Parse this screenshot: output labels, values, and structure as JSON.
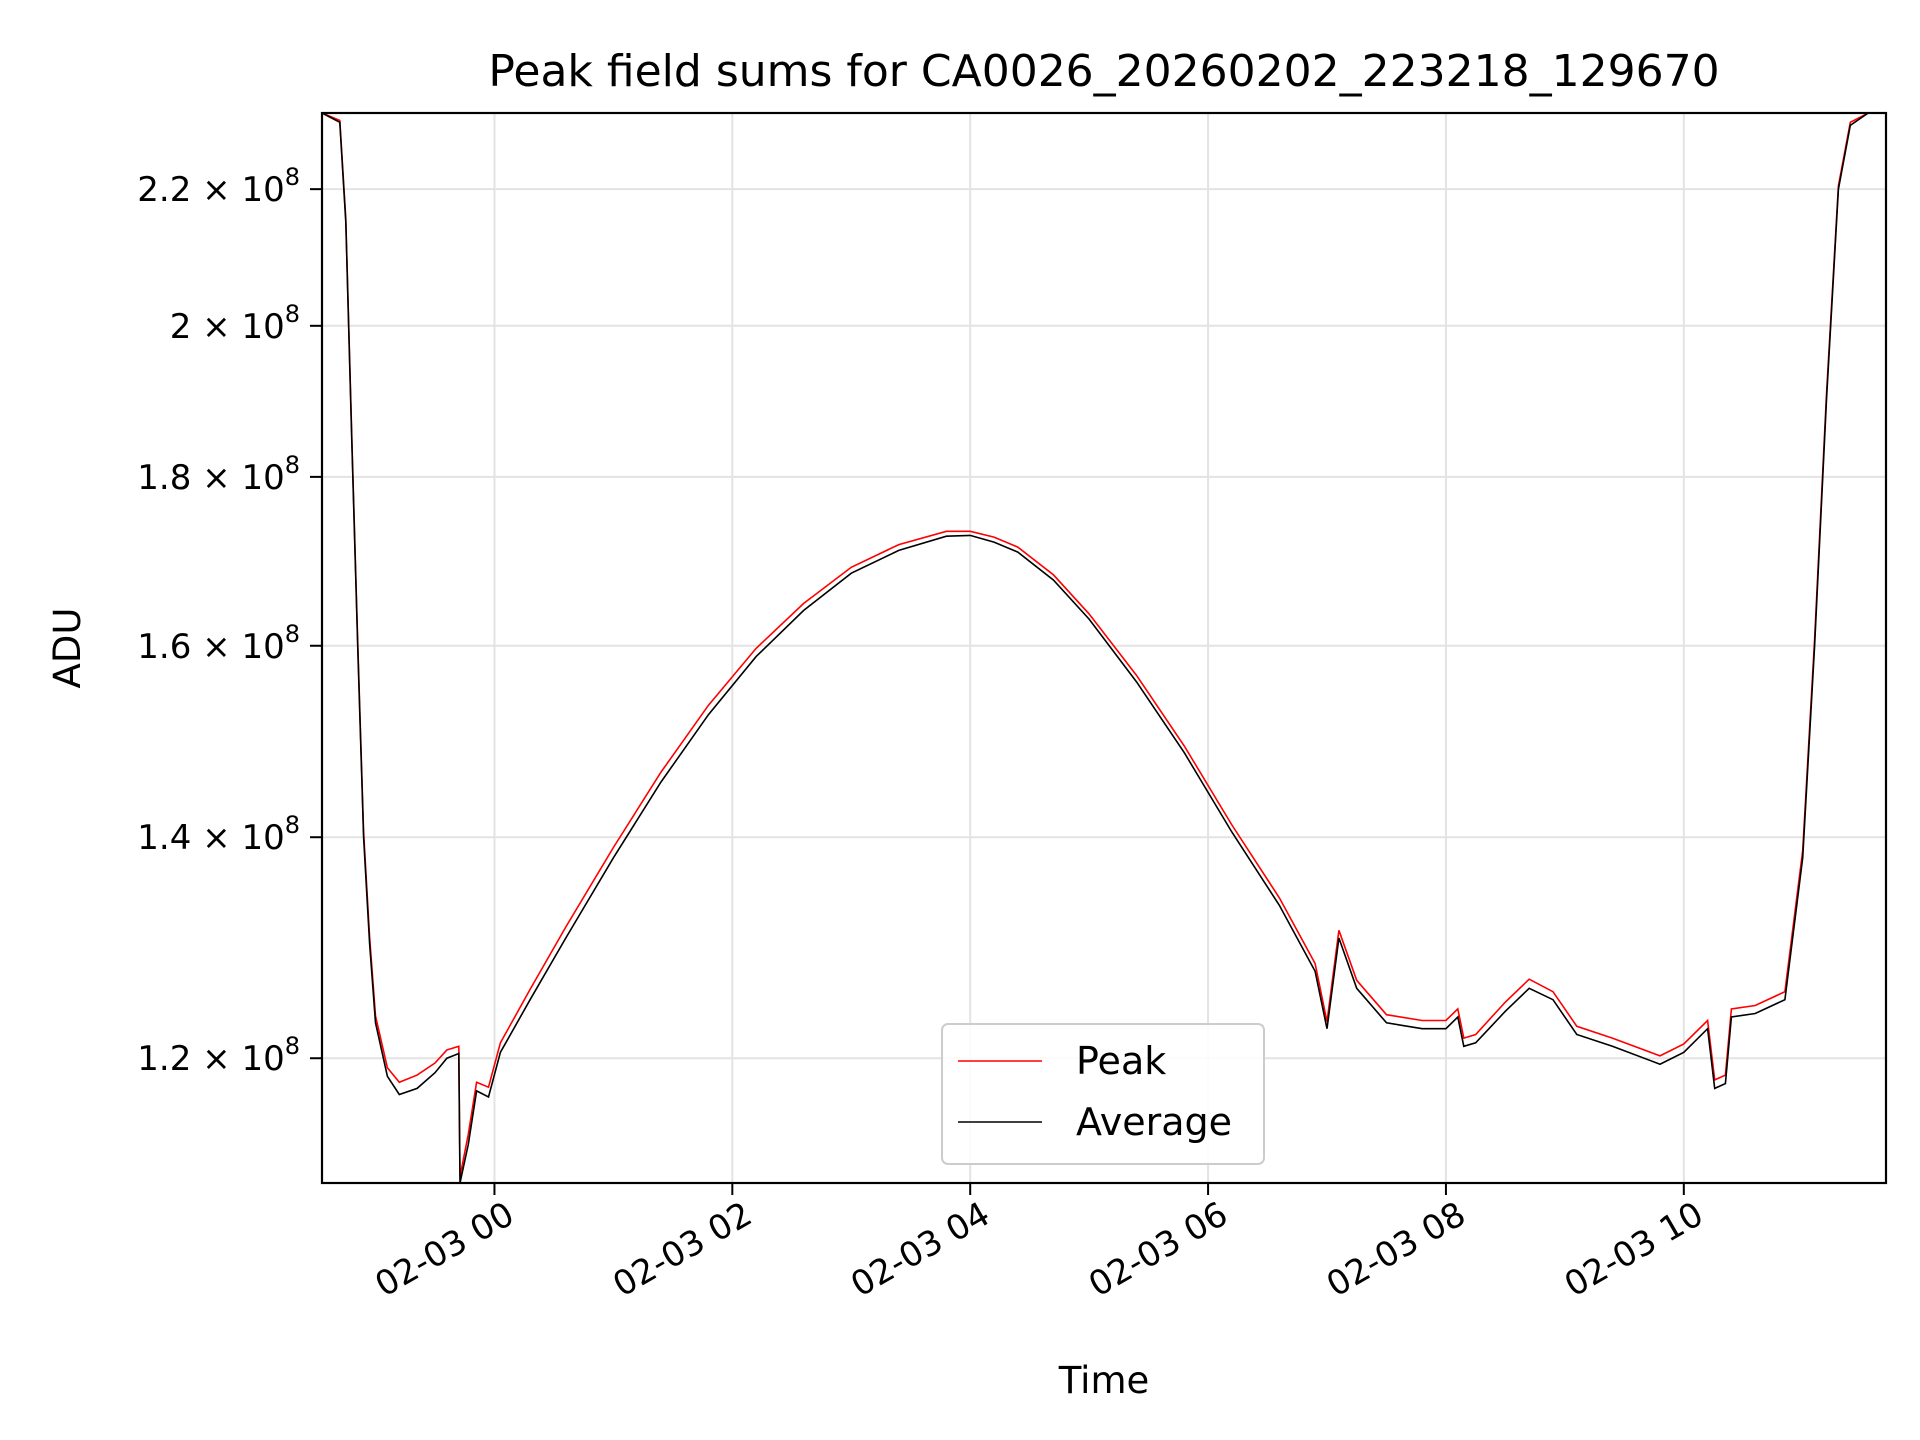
{
  "chart_data": {
    "type": "line",
    "title": "Peak field sums for CA0026_20260202_223218_129670",
    "xlabel": "Time",
    "ylabel": "ADU",
    "xlim_hours": [
      -1.45,
      11.7
    ],
    "ylim": [
      110000000,
      232000000
    ],
    "yscale": "log",
    "grid": true,
    "legend_position": "bottom-center",
    "x_ticks": [
      {
        "value": 0,
        "label": "02-03 00"
      },
      {
        "value": 2,
        "label": "02-03 02"
      },
      {
        "value": 4,
        "label": "02-03 04"
      },
      {
        "value": 6,
        "label": "02-03 06"
      },
      {
        "value": 8,
        "label": "02-03 08"
      },
      {
        "value": 10,
        "label": "02-03 10"
      }
    ],
    "y_ticks": [
      {
        "value": 120000000,
        "mantissa": "1.2",
        "base": "× 10",
        "exp": "8"
      },
      {
        "value": 140000000,
        "mantissa": "1.4",
        "base": "× 10",
        "exp": "8"
      },
      {
        "value": 160000000,
        "mantissa": "1.6",
        "base": "× 10",
        "exp": "8"
      },
      {
        "value": 180000000,
        "mantissa": "1.8",
        "base": "× 10",
        "exp": "8"
      },
      {
        "value": 200000000,
        "mantissa": "2",
        "base": "× 10",
        "exp": "8"
      },
      {
        "value": 220000000,
        "mantissa": "2.2",
        "base": "× 10",
        "exp": "8"
      }
    ],
    "series": [
      {
        "name": "Average",
        "color": "#000000",
        "points": [
          [
            -1.45,
            232000000
          ],
          [
            -1.3,
            230500000
          ],
          [
            -1.25,
            215000000
          ],
          [
            -1.2,
            185000000
          ],
          [
            -1.15,
            160000000
          ],
          [
            -1.1,
            140000000
          ],
          [
            -1.05,
            130000000
          ],
          [
            -1.0,
            123000000
          ],
          [
            -0.9,
            118500000
          ],
          [
            -0.8,
            117000000
          ],
          [
            -0.65,
            117500000
          ],
          [
            -0.5,
            118800000
          ],
          [
            -0.4,
            120000000
          ],
          [
            -0.3,
            120400000
          ],
          [
            -0.29,
            110000000
          ],
          [
            -0.22,
            113000000
          ],
          [
            -0.15,
            117300000
          ],
          [
            -0.05,
            116800000
          ],
          [
            0.05,
            120500000
          ],
          [
            0.3,
            125000000
          ],
          [
            0.6,
            130500000
          ],
          [
            1.0,
            138000000
          ],
          [
            1.4,
            145500000
          ],
          [
            1.8,
            152500000
          ],
          [
            2.2,
            158800000
          ],
          [
            2.6,
            164000000
          ],
          [
            3.0,
            168300000
          ],
          [
            3.4,
            171000000
          ],
          [
            3.8,
            172700000
          ],
          [
            4.0,
            172800000
          ],
          [
            4.2,
            172000000
          ],
          [
            4.4,
            170800000
          ],
          [
            4.7,
            167500000
          ],
          [
            5.0,
            163000000
          ],
          [
            5.4,
            156000000
          ],
          [
            5.8,
            148500000
          ],
          [
            6.2,
            140500000
          ],
          [
            6.6,
            133500000
          ],
          [
            6.9,
            127500000
          ],
          [
            7.0,
            122500000
          ],
          [
            7.1,
            130500000
          ],
          [
            7.25,
            126000000
          ],
          [
            7.5,
            123000000
          ],
          [
            7.8,
            122500000
          ],
          [
            8.0,
            122500000
          ],
          [
            8.1,
            123500000
          ],
          [
            8.15,
            121000000
          ],
          [
            8.25,
            121300000
          ],
          [
            8.5,
            124000000
          ],
          [
            8.7,
            126000000
          ],
          [
            8.9,
            125000000
          ],
          [
            9.1,
            122000000
          ],
          [
            9.4,
            121000000
          ],
          [
            9.8,
            119500000
          ],
          [
            10.0,
            120500000
          ],
          [
            10.2,
            122500000
          ],
          [
            10.26,
            117500000
          ],
          [
            10.35,
            117900000
          ],
          [
            10.4,
            123500000
          ],
          [
            10.6,
            123800000
          ],
          [
            10.85,
            125000000
          ],
          [
            11.0,
            138000000
          ],
          [
            11.1,
            160000000
          ],
          [
            11.2,
            190000000
          ],
          [
            11.3,
            220000000
          ],
          [
            11.4,
            230000000
          ],
          [
            11.55,
            232000000
          ],
          [
            11.7,
            232000000
          ]
        ]
      },
      {
        "name": "Peak",
        "color": "#ff0000",
        "points": [
          [
            -1.45,
            232000000
          ],
          [
            -1.3,
            230800000
          ],
          [
            -1.25,
            215500000
          ],
          [
            -1.2,
            185500000
          ],
          [
            -1.15,
            160500000
          ],
          [
            -1.1,
            140500000
          ],
          [
            -1.05,
            130600000
          ],
          [
            -1.0,
            123600000
          ],
          [
            -0.9,
            119200000
          ],
          [
            -0.8,
            118000000
          ],
          [
            -0.65,
            118600000
          ],
          [
            -0.5,
            119600000
          ],
          [
            -0.4,
            120700000
          ],
          [
            -0.3,
            121000000
          ],
          [
            -0.29,
            110500000
          ],
          [
            -0.22,
            113800000
          ],
          [
            -0.15,
            118000000
          ],
          [
            -0.05,
            117600000
          ],
          [
            0.05,
            121300000
          ],
          [
            0.3,
            125900000
          ],
          [
            0.6,
            131500000
          ],
          [
            1.0,
            139000000
          ],
          [
            1.4,
            146500000
          ],
          [
            1.8,
            153500000
          ],
          [
            2.2,
            159700000
          ],
          [
            2.6,
            164800000
          ],
          [
            3.0,
            169000000
          ],
          [
            3.4,
            171700000
          ],
          [
            3.8,
            173300000
          ],
          [
            4.0,
            173300000
          ],
          [
            4.2,
            172600000
          ],
          [
            4.4,
            171400000
          ],
          [
            4.7,
            168100000
          ],
          [
            5.0,
            163600000
          ],
          [
            5.4,
            156700000
          ],
          [
            5.8,
            149200000
          ],
          [
            6.2,
            141200000
          ],
          [
            6.6,
            134200000
          ],
          [
            6.9,
            128200000
          ],
          [
            7.0,
            123100000
          ],
          [
            7.1,
            131200000
          ],
          [
            7.25,
            126700000
          ],
          [
            7.5,
            123700000
          ],
          [
            7.8,
            123200000
          ],
          [
            8.0,
            123200000
          ],
          [
            8.1,
            124200000
          ],
          [
            8.15,
            121700000
          ],
          [
            8.25,
            122000000
          ],
          [
            8.5,
            124800000
          ],
          [
            8.7,
            126800000
          ],
          [
            8.9,
            125700000
          ],
          [
            9.1,
            122700000
          ],
          [
            9.4,
            121700000
          ],
          [
            9.8,
            120200000
          ],
          [
            10.0,
            121200000
          ],
          [
            10.2,
            123200000
          ],
          [
            10.26,
            118200000
          ],
          [
            10.35,
            118600000
          ],
          [
            10.4,
            124200000
          ],
          [
            10.6,
            124500000
          ],
          [
            10.85,
            125700000
          ],
          [
            11.0,
            138700000
          ],
          [
            11.1,
            160700000
          ],
          [
            11.2,
            190700000
          ],
          [
            11.3,
            220500000
          ],
          [
            11.4,
            230500000
          ],
          [
            11.55,
            232000000
          ],
          [
            11.7,
            232000000
          ]
        ]
      }
    ],
    "legend": [
      {
        "name": "Peak",
        "color": "#ff0000"
      },
      {
        "name": "Average",
        "color": "#000000"
      }
    ]
  }
}
